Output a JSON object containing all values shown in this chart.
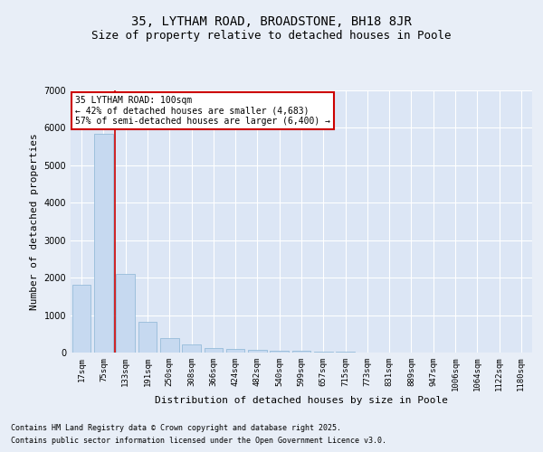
{
  "title": "35, LYTHAM ROAD, BROADSTONE, BH18 8JR",
  "subtitle": "Size of property relative to detached houses in Poole",
  "xlabel": "Distribution of detached houses by size in Poole",
  "ylabel": "Number of detached properties",
  "categories": [
    "17sqm",
    "75sqm",
    "133sqm",
    "191sqm",
    "250sqm",
    "308sqm",
    "366sqm",
    "424sqm",
    "482sqm",
    "540sqm",
    "599sqm",
    "657sqm",
    "715sqm",
    "773sqm",
    "831sqm",
    "889sqm",
    "947sqm",
    "1006sqm",
    "1064sqm",
    "1122sqm",
    "1180sqm"
  ],
  "bar_heights": [
    1800,
    5850,
    2100,
    830,
    380,
    220,
    130,
    100,
    80,
    60,
    50,
    30,
    20,
    10,
    8,
    5,
    3,
    2,
    2,
    1,
    0
  ],
  "bar_color": "#c6d9f0",
  "bar_edge_color": "#8ab4d4",
  "vline_x": 1.5,
  "vline_color": "#cc0000",
  "annotation_text": "35 LYTHAM ROAD: 100sqm\n← 42% of detached houses are smaller (4,683)\n57% of semi-detached houses are larger (6,400) →",
  "annotation_box_color": "#ffffff",
  "annotation_box_edge": "#cc0000",
  "ylim": [
    0,
    7000
  ],
  "yticks": [
    0,
    1000,
    2000,
    3000,
    4000,
    5000,
    6000,
    7000
  ],
  "background_color": "#dce6f5",
  "fig_background_color": "#e8eef7",
  "grid_color": "#ffffff",
  "title_fontsize": 10,
  "subtitle_fontsize": 9,
  "footer_line1": "Contains HM Land Registry data © Crown copyright and database right 2025.",
  "footer_line2": "Contains public sector information licensed under the Open Government Licence v3.0."
}
